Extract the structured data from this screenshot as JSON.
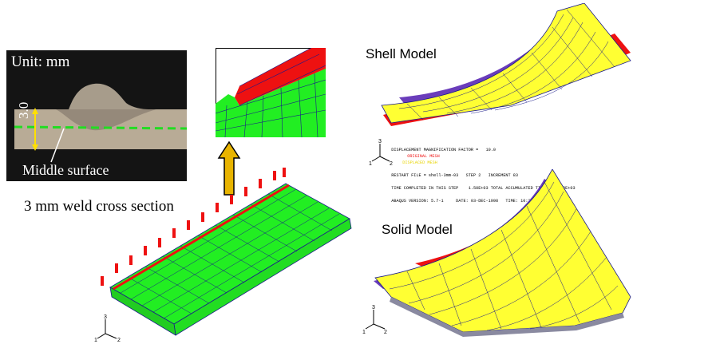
{
  "photo": {
    "unit_label": "Unit: mm",
    "thickness": "3.0",
    "middle_label": "Middle surface"
  },
  "caption": "3 mm weld cross section",
  "shell": {
    "title": "Shell Model",
    "info": {
      "line1": "DISPLACEMENT MAGNIFICATION FACTOR =   10.0",
      "original": "ORIGINAL MESH",
      "displaced": "DISPLACED MESH",
      "line2": "RESTART FILE = shell-3mm-03   STEP 2   INCREMENT 83",
      "line3": "TIME COMPLETED IN THIS STEP    1.50E+03 TOTAL ACCUMULATED TIME    1.50E+03",
      "line4": "ABAQUS VERSION: 5.7-1     DATE: 03-DEC-1998   TIME: 10:25:24"
    }
  },
  "solid": {
    "title": "Solid Model"
  },
  "axes": {
    "x": "1",
    "y": "2",
    "z": "3"
  },
  "colors": {
    "mesh_green": "#22ee22",
    "mesh_line": "#1a1a8a",
    "weld_red": "#ee1111",
    "deformed_yellow": "#ffff33",
    "original_purple": "#6a3dbb",
    "arrow_orange": "#e8b400"
  }
}
